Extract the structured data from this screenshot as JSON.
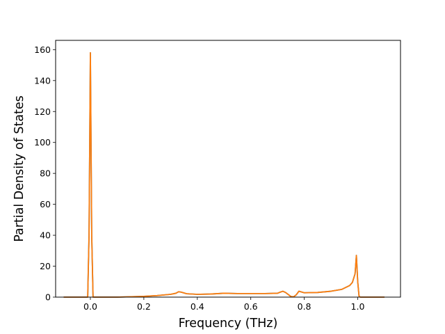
{
  "chart_data": {
    "type": "line",
    "title": "",
    "xlabel": "Frequency (THz)",
    "ylabel": "Partial Density of States",
    "xlim": [
      -0.13,
      1.16
    ],
    "ylim": [
      0,
      166
    ],
    "xticks": [
      0.0,
      0.2,
      0.4,
      0.6,
      0.8,
      1.0
    ],
    "xtick_labels": [
      "0.0",
      "0.2",
      "0.4",
      "0.6",
      "0.8",
      "1.0"
    ],
    "yticks": [
      0,
      20,
      40,
      60,
      80,
      100,
      120,
      140,
      160
    ],
    "ytick_labels": [
      "0",
      "20",
      "40",
      "60",
      "80",
      "100",
      "120",
      "140",
      "160"
    ],
    "grid": false,
    "series": [
      {
        "color": "#1f77b4",
        "x": [
          -0.1,
          -0.01,
          -0.005,
          0.0,
          0.005,
          0.01,
          0.1,
          0.2,
          0.25,
          0.3,
          0.32,
          0.33,
          0.34,
          0.36,
          0.4,
          0.45,
          0.5,
          0.55,
          0.6,
          0.65,
          0.7,
          0.71,
          0.72,
          0.73,
          0.75,
          0.76,
          0.77,
          0.78,
          0.8,
          0.85,
          0.9,
          0.94,
          0.97,
          0.98,
          0.99,
          0.995,
          1.0,
          1.005,
          1.01,
          1.05,
          1.1
        ],
        "y": [
          0,
          0,
          40,
          158,
          40,
          0,
          0,
          0.5,
          1,
          1.8,
          2.5,
          3.5,
          3.2,
          2.2,
          1.8,
          2.0,
          2.5,
          2.3,
          2.3,
          2.3,
          2.5,
          3.2,
          3.8,
          3.0,
          0.4,
          0.2,
          1.5,
          3.8,
          2.8,
          3.0,
          3.8,
          5.0,
          7.5,
          9.5,
          15,
          27,
          10,
          0.5,
          0,
          0,
          0
        ]
      },
      {
        "color": "#ff7f0e",
        "x": [
          -0.1,
          -0.01,
          -0.005,
          0.0,
          0.005,
          0.01,
          0.1,
          0.2,
          0.25,
          0.3,
          0.32,
          0.33,
          0.34,
          0.36,
          0.4,
          0.45,
          0.5,
          0.55,
          0.6,
          0.65,
          0.7,
          0.71,
          0.72,
          0.73,
          0.75,
          0.76,
          0.77,
          0.78,
          0.8,
          0.85,
          0.9,
          0.94,
          0.97,
          0.98,
          0.99,
          0.995,
          1.0,
          1.005,
          1.01,
          1.05,
          1.1
        ],
        "y": [
          0,
          0,
          40,
          158,
          40,
          0,
          0,
          0.5,
          1,
          1.8,
          2.5,
          3.5,
          3.2,
          2.2,
          1.8,
          2.0,
          2.5,
          2.3,
          2.3,
          2.3,
          2.5,
          3.2,
          3.8,
          3.0,
          0.4,
          0.2,
          1.5,
          3.8,
          2.8,
          3.0,
          3.8,
          5.0,
          7.5,
          9.5,
          15,
          27,
          10,
          0.5,
          0,
          0,
          0
        ]
      }
    ]
  }
}
